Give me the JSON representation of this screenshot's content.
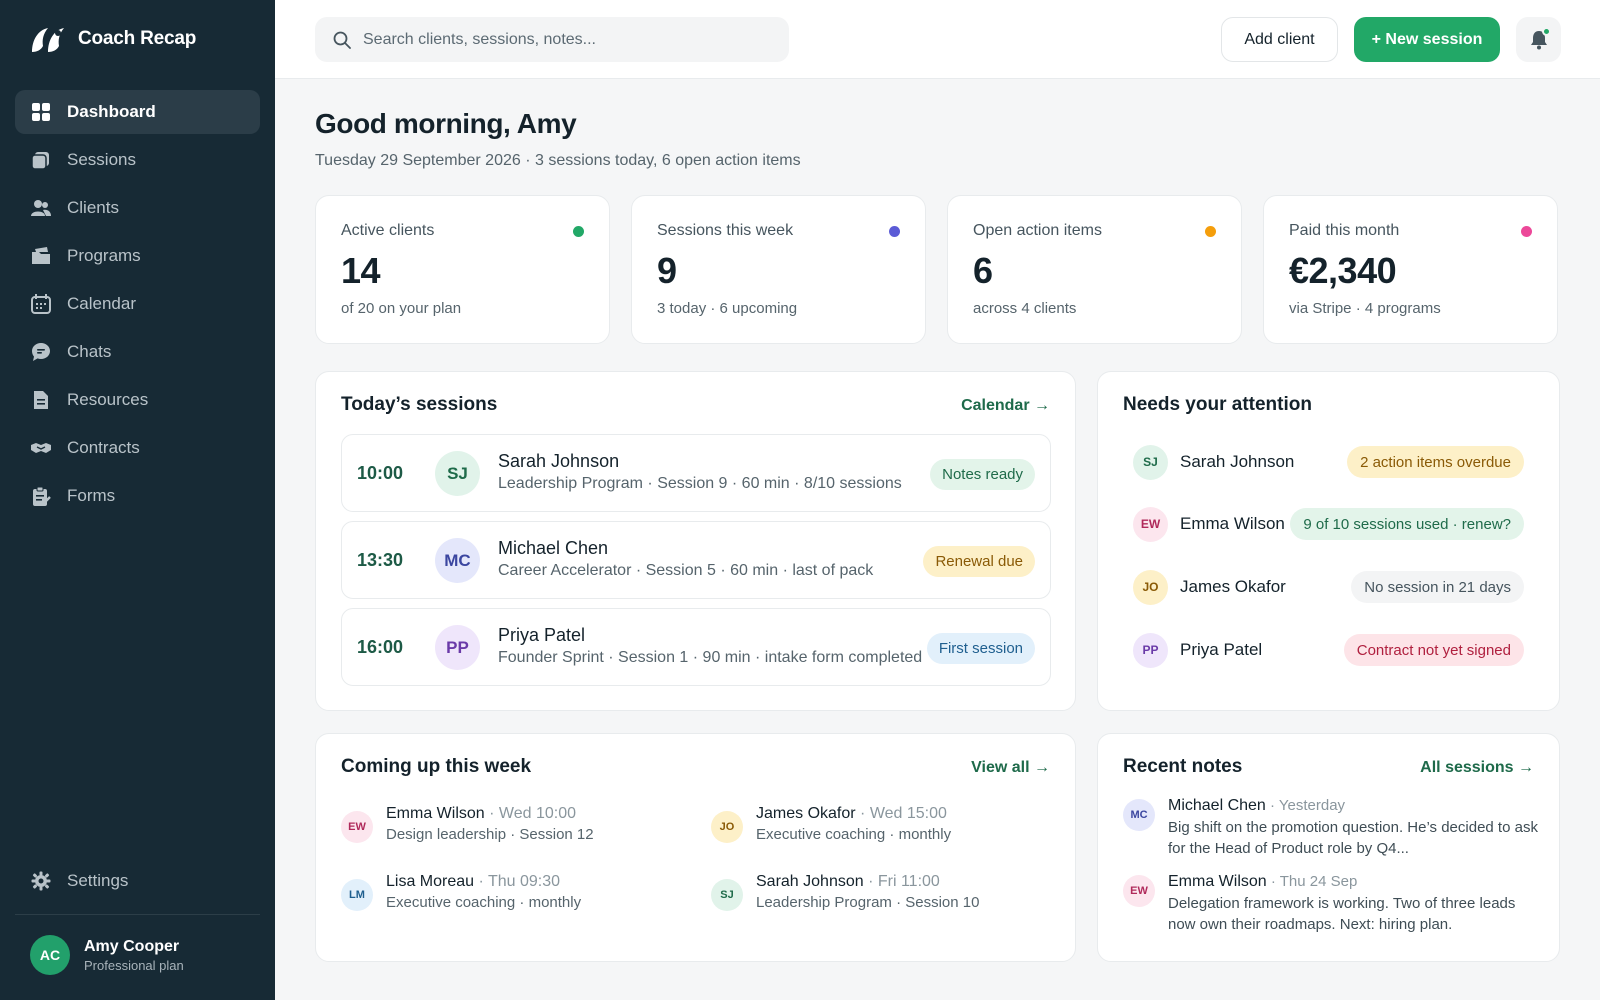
{
  "app": {
    "name": "Coach Recap"
  },
  "sidebar": {
    "items": [
      {
        "label": "Dashboard",
        "icon": "grid-icon"
      },
      {
        "label": "Sessions",
        "icon": "sessions-icon"
      },
      {
        "label": "Clients",
        "icon": "users-icon"
      },
      {
        "label": "Programs",
        "icon": "programs-icon"
      },
      {
        "label": "Calendar",
        "icon": "calendar-icon"
      },
      {
        "label": "Chats",
        "icon": "chat-icon"
      },
      {
        "label": "Resources",
        "icon": "document-icon"
      },
      {
        "label": "Contracts",
        "icon": "handshake-icon"
      },
      {
        "label": "Forms",
        "icon": "clipboard-icon"
      }
    ],
    "settings_label": "Settings",
    "user": {
      "initials": "AC",
      "name": "Amy Cooper",
      "plan": "Professional plan"
    }
  },
  "topbar": {
    "search_placeholder": "Search clients, sessions, notes...",
    "add_client_label": "Add client",
    "new_session_label": "+ New session"
  },
  "header": {
    "greeting": "Good morning, Amy",
    "subline": "Tuesday 29 September 2026 · 3 sessions today, 6 open action items"
  },
  "stats": [
    {
      "label": "Active clients",
      "value": "14",
      "sub": "of 20 on your plan",
      "color": "#22a867"
    },
    {
      "label": "Sessions this week",
      "value": "9",
      "sub": "3 today · 6 upcoming",
      "color": "#5b5bd6"
    },
    {
      "label": "Open action items",
      "value": "6",
      "sub": "across 4 clients",
      "color": "#f59e0b"
    },
    {
      "label": "Paid this month",
      "value": "€2,340",
      "sub": "via Stripe · 4 programs",
      "color": "#ec4899"
    }
  ],
  "today": {
    "title": "Today’s sessions",
    "link": "Calendar →",
    "sessions": [
      {
        "time": "10:00",
        "initials": "SJ",
        "name": "Sarah Johnson",
        "meta": "Leadership Program · Session 9 · 60 min · 8/10 sessions",
        "badge": "Notes ready"
      },
      {
        "time": "13:30",
        "initials": "MC",
        "name": "Michael Chen",
        "meta": "Career Accelerator · Session 5 · 60 min · last of pack",
        "badge": "Renewal due"
      },
      {
        "time": "16:00",
        "initials": "PP",
        "name": "Priya Patel",
        "meta": "Founder Sprint · Session 1 · 90 min · intake form completed",
        "badge": "First session"
      }
    ]
  },
  "attention": {
    "title": "Needs your attention",
    "items": [
      {
        "initials": "SJ",
        "name": "Sarah Johnson",
        "badge": "2 action items overdue"
      },
      {
        "initials": "EW",
        "name": "Emma Wilson",
        "badge": "9 of 10 sessions used · renew?"
      },
      {
        "initials": "JO",
        "name": "James Okafor",
        "badge": "No session in 21 days"
      },
      {
        "initials": "PP",
        "name": "Priya Patel",
        "badge": "Contract not yet signed"
      }
    ]
  },
  "upcoming": {
    "title": "Coming up this week",
    "link": "View all →",
    "items": [
      {
        "initials": "EW",
        "name": "Emma Wilson",
        "when": " · Wed 10:00",
        "meta": "Design leadership · Session 12"
      },
      {
        "initials": "JO",
        "name": "James Okafor",
        "when": " · Wed 15:00",
        "meta": "Executive coaching · monthly"
      },
      {
        "initials": "LM",
        "name": "Lisa Moreau",
        "when": " · Thu 09:30",
        "meta": "Executive coaching · monthly"
      },
      {
        "initials": "SJ",
        "name": "Sarah Johnson",
        "when": " · Fri 11:00",
        "meta": "Leadership Program · Session 10"
      }
    ]
  },
  "notes": {
    "title": "Recent notes",
    "link": "All sessions →",
    "items": [
      {
        "initials": "MC",
        "name": "Michael Chen",
        "when": " · Yesterday",
        "text": "Big shift on the promotion question. He’s decided to ask for the Head of Product role by Q4..."
      },
      {
        "initials": "EW",
        "name": "Emma Wilson",
        "when": " · Thu 24 Sep",
        "text": "Delegation framework is working. Two of three leads now own their roadmaps. Next: hiring plan."
      }
    ]
  }
}
